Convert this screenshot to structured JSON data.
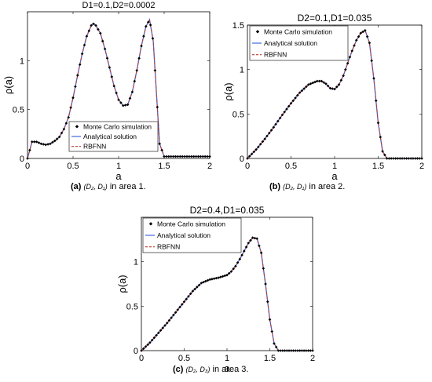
{
  "chart_data": [
    {
      "type": "line",
      "title": "D1=0.1,D2=0.0002",
      "xlabel": "a",
      "ylabel": "ρ(a)",
      "xlim": [
        0,
        2
      ],
      "ylim": [
        0,
        1.5
      ],
      "xticks": [
        "0",
        "0.5",
        "1",
        "1.5",
        "2"
      ],
      "yticks": [
        "0",
        "0.5",
        "1"
      ],
      "legend_position": "bottom-left",
      "legend": [
        "Monte Carlo simulation",
        "Analytical solution",
        "RBFNN"
      ],
      "x": [
        0,
        0.05,
        0.1,
        0.15,
        0.2,
        0.25,
        0.3,
        0.35,
        0.4,
        0.45,
        0.5,
        0.55,
        0.6,
        0.65,
        0.7,
        0.72,
        0.75,
        0.8,
        0.85,
        0.9,
        0.95,
        1.0,
        1.05,
        1.1,
        1.15,
        1.2,
        1.25,
        1.3,
        1.34,
        1.38,
        1.42,
        1.45,
        1.5,
        1.6,
        1.7,
        1.8,
        1.9,
        2.0
      ],
      "y": [
        0.0,
        0.17,
        0.17,
        0.15,
        0.14,
        0.15,
        0.18,
        0.22,
        0.3,
        0.42,
        0.62,
        0.85,
        1.07,
        1.25,
        1.36,
        1.38,
        1.36,
        1.28,
        1.12,
        0.93,
        0.74,
        0.6,
        0.54,
        0.55,
        0.68,
        0.9,
        1.15,
        1.35,
        1.42,
        1.2,
        0.6,
        0.15,
        0.02,
        0.02,
        0.02,
        0.02,
        0.02,
        0.02
      ],
      "series": [
        {
          "name": "Monte Carlo simulation",
          "color": "#000000"
        },
        {
          "name": "Analytical solution",
          "color": "#4169e1"
        },
        {
          "name": "RBFNN",
          "color": "#c0392b"
        }
      ],
      "caption": {
        "label": "(a)",
        "params": "(D₂, D₁)",
        "text": "in area 1."
      }
    },
    {
      "type": "line",
      "title": "D2=0.1,D1=0.035",
      "xlabel": "a",
      "ylabel": "ρ(a)",
      "xlim": [
        0,
        2
      ],
      "ylim": [
        0,
        1.5
      ],
      "xticks": [
        "0",
        "0.5",
        "1",
        "1.5",
        "2"
      ],
      "yticks": [
        "0",
        "0.5",
        "1",
        "1.5"
      ],
      "legend_position": "top-left",
      "legend": [
        "Monte Carlo simulation",
        "Analytical solution",
        "RBFNN"
      ],
      "x": [
        0,
        0.1,
        0.2,
        0.3,
        0.4,
        0.5,
        0.6,
        0.7,
        0.8,
        0.85,
        0.9,
        0.95,
        1.0,
        1.05,
        1.1,
        1.15,
        1.2,
        1.25,
        1.3,
        1.35,
        1.4,
        1.45,
        1.5,
        1.55,
        1.6,
        1.7,
        1.8,
        1.9,
        2.0
      ],
      "y": [
        0.0,
        0.1,
        0.22,
        0.35,
        0.49,
        0.62,
        0.74,
        0.83,
        0.87,
        0.87,
        0.84,
        0.79,
        0.78,
        0.83,
        0.93,
        1.07,
        1.21,
        1.33,
        1.41,
        1.44,
        1.3,
        0.9,
        0.4,
        0.08,
        0.0,
        0.0,
        0.0,
        0.0,
        0.0
      ],
      "series": [
        {
          "name": "Monte Carlo simulation",
          "color": "#000000"
        },
        {
          "name": "Analytical solution",
          "color": "#4169e1"
        },
        {
          "name": "RBFNN",
          "color": "#c0392b"
        }
      ],
      "caption": {
        "label": "(b)",
        "params": "(D₂, D₁)",
        "text": "in area 2."
      }
    },
    {
      "type": "line",
      "title": "D2=0.4,D1=0.035",
      "xlabel": "a",
      "ylabel": "ρ(a)",
      "xlim": [
        0,
        2
      ],
      "ylim": [
        0,
        1.5
      ],
      "xticks": [
        "0",
        "0.5",
        "1",
        "1.5",
        "2"
      ],
      "yticks": [
        "0",
        "0.5",
        "1"
      ],
      "legend_position": "top-left",
      "legend": [
        "Monte Carlo simulation",
        "Analytical solution",
        "RBFNN"
      ],
      "x": [
        0,
        0.1,
        0.2,
        0.3,
        0.4,
        0.5,
        0.6,
        0.7,
        0.8,
        0.9,
        1.0,
        1.05,
        1.1,
        1.15,
        1.2,
        1.25,
        1.3,
        1.35,
        1.4,
        1.45,
        1.5,
        1.55,
        1.6,
        1.7,
        1.8,
        1.9,
        2.0
      ],
      "y": [
        0.0,
        0.09,
        0.2,
        0.31,
        0.43,
        0.55,
        0.67,
        0.76,
        0.8,
        0.82,
        0.85,
        0.89,
        0.95,
        1.03,
        1.12,
        1.21,
        1.27,
        1.26,
        1.1,
        0.75,
        0.35,
        0.08,
        0.0,
        0.0,
        0.0,
        0.0,
        0.0
      ],
      "series": [
        {
          "name": "Monte Carlo simulation",
          "color": "#000000"
        },
        {
          "name": "Analytical solution",
          "color": "#4169e1"
        },
        {
          "name": "RBFNN",
          "color": "#c0392b"
        }
      ],
      "caption": {
        "label": "(c)",
        "params": "(D₂, D₃)",
        "text": "in area 3."
      }
    }
  ]
}
